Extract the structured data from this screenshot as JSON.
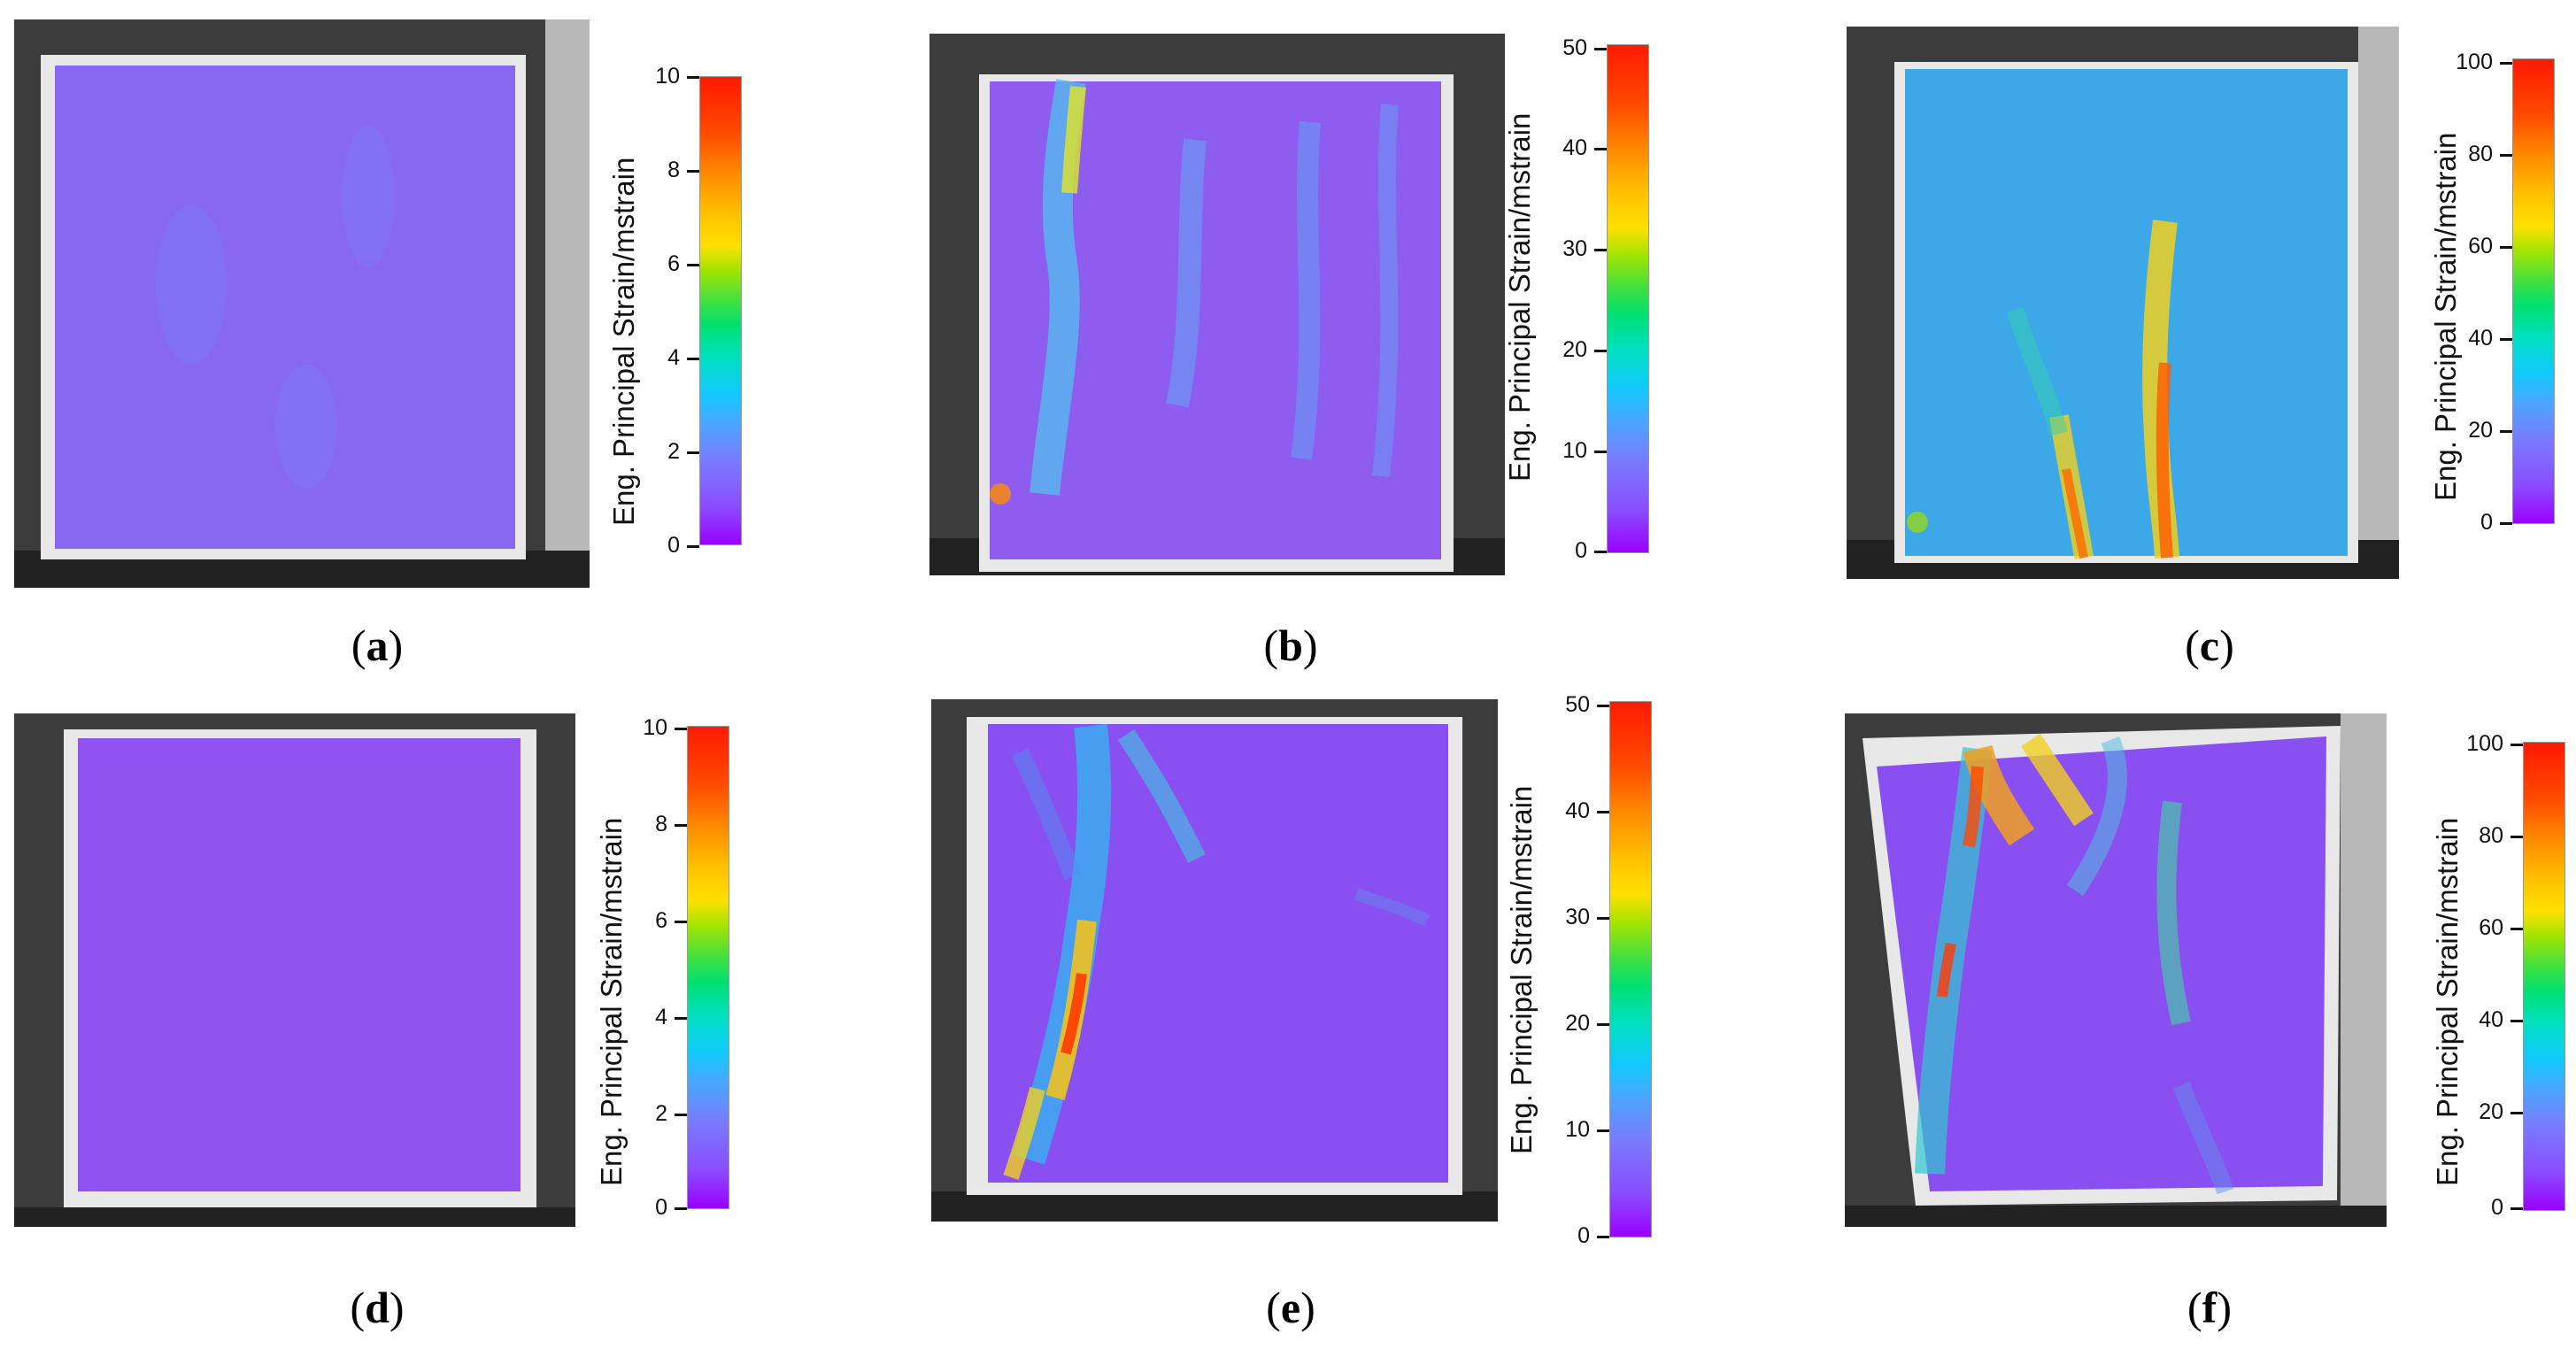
{
  "figure": {
    "colorbar_label": "Eng. Principal Strain/mstrain",
    "panels": [
      {
        "id": "a",
        "caption": "a",
        "ticks": [
          "10",
          "8",
          "6",
          "4",
          "2",
          "0"
        ],
        "strain_max": 10
      },
      {
        "id": "b",
        "caption": "b",
        "ticks": [
          "50",
          "40",
          "30",
          "20",
          "10",
          "0"
        ],
        "strain_max": 50
      },
      {
        "id": "c",
        "caption": "c",
        "ticks": [
          "100",
          "80",
          "60",
          "40",
          "20",
          "0"
        ],
        "strain_max": 100
      },
      {
        "id": "d",
        "caption": "d",
        "ticks": [
          "10",
          "8",
          "6",
          "4",
          "2",
          "0"
        ],
        "strain_max": 10
      },
      {
        "id": "e",
        "caption": "e",
        "ticks": [
          "50",
          "40",
          "30",
          "20",
          "10",
          "0"
        ],
        "strain_max": 50
      },
      {
        "id": "f",
        "caption": "f",
        "ticks": [
          "100",
          "80",
          "60",
          "40",
          "20",
          "0"
        ],
        "strain_max": 100
      }
    ]
  },
  "colors": {
    "low": "#9a00ff",
    "mid": "#00e070",
    "high": "#ff1a00",
    "frame": "#2a2a2a"
  }
}
